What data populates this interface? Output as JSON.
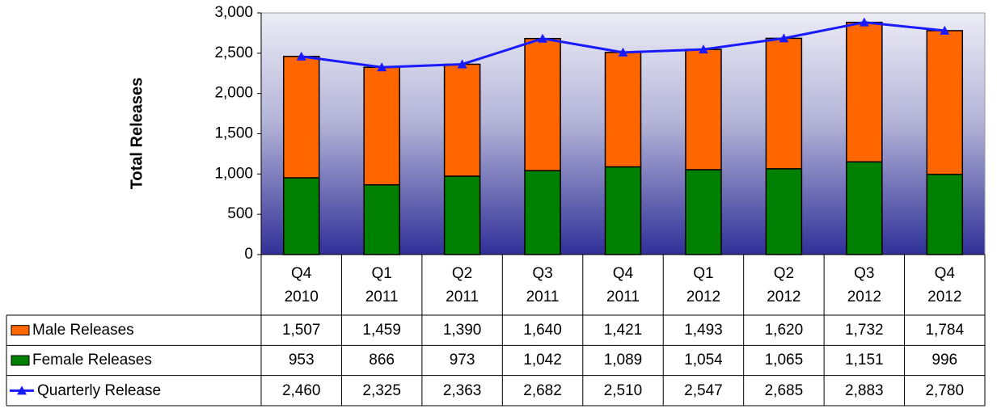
{
  "chart_data": {
    "type": "bar",
    "y_axis_label": "Total Releases",
    "categories": [
      "Q4\n2010",
      "Q1\n2011",
      "Q2\n2011",
      "Q3\n2011",
      "Q4\n2011",
      "Q1\n2012",
      "Q2\n2012",
      "Q3\n2012",
      "Q4\n2012"
    ],
    "series": [
      {
        "name": "Male Releases",
        "type": "bar",
        "color": "#ff6600",
        "values": [
          1507,
          1459,
          1390,
          1640,
          1421,
          1493,
          1620,
          1732,
          1784
        ],
        "value_labels": [
          "1,507",
          "1,459",
          "1,390",
          "1,640",
          "1,421",
          "1,493",
          "1,620",
          "1,732",
          "1,784"
        ]
      },
      {
        "name": "Female Releases",
        "type": "bar",
        "color": "#008000",
        "values": [
          953,
          866,
          973,
          1042,
          1089,
          1054,
          1065,
          1151,
          996
        ],
        "value_labels": [
          "953",
          "866",
          "973",
          "1,042",
          "1,089",
          "1,054",
          "1,065",
          "1,151",
          "996"
        ]
      },
      {
        "name": "Quarterly Release",
        "type": "line",
        "color": "#1a1aff",
        "values": [
          2460,
          2325,
          2363,
          2682,
          2510,
          2547,
          2685,
          2883,
          2780
        ],
        "value_labels": [
          "2,460",
          "2,325",
          "2,363",
          "2,682",
          "2,510",
          "2,547",
          "2,685",
          "2,883",
          "2,780"
        ]
      }
    ],
    "ylim": [
      0,
      3000
    ],
    "yticks": [
      0,
      500,
      {
        "value": 1000,
        "label": "1,000"
      },
      {
        "value": 1500,
        "label": "1,500"
      },
      {
        "value": 2000,
        "label": "2,000"
      },
      {
        "value": 2500,
        "label": "2,500"
      },
      {
        "value": 3000,
        "label": "3,000"
      }
    ],
    "grid": false,
    "data_table": true
  }
}
